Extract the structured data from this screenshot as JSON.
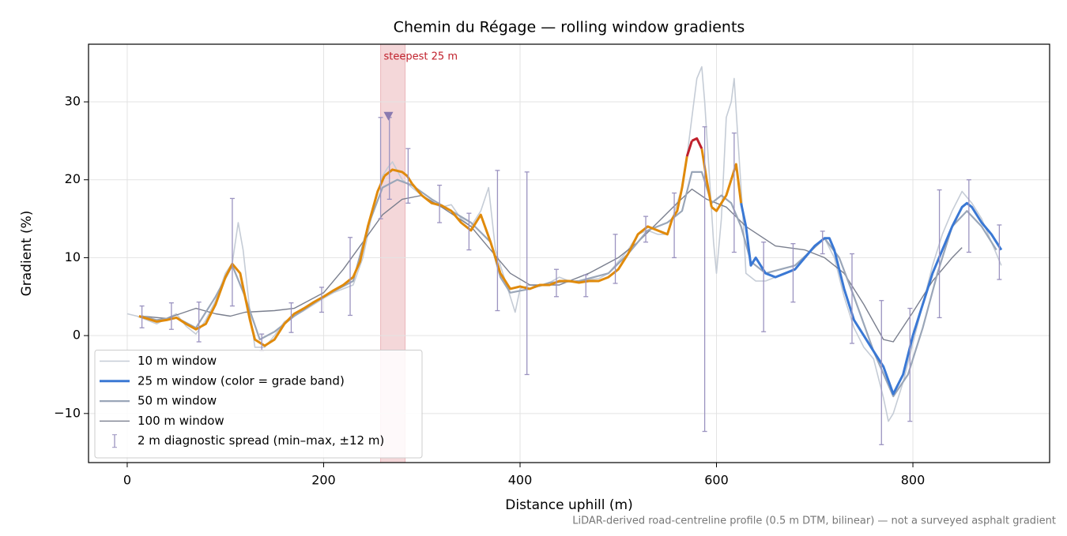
{
  "chart_data": {
    "type": "line",
    "title": "Chemin du Régage — rolling window gradients",
    "xlabel": "Distance uphill (m)",
    "ylabel": "Gradient (%)",
    "footnote": "LiDAR-derived road-centreline profile (0.5 m DTM, bilinear) — not a surveyed asphalt gradient",
    "xlim": [
      -39.4,
      939.2
    ],
    "ylim": [
      -16.3,
      37.4
    ],
    "xticks": [
      0,
      200,
      400,
      600,
      800
    ],
    "yticks": [
      {
        "value": -10,
        "label": "−10"
      },
      0,
      10,
      20,
      30
    ],
    "grid": true,
    "legend": "lower left",
    "highlight": {
      "xlim": [
        258,
        283
      ],
      "label": "steepest 25 m",
      "color": "#c0202b"
    },
    "marker": {
      "x": 266,
      "y": 28.2,
      "color": "#8a7ab0"
    },
    "series": [
      {
        "name": "10 m window",
        "color": "#c5ccd6",
        "x": [
          0,
          10,
          20,
          30,
          40,
          50,
          60,
          70,
          80,
          90,
          100,
          107,
          113,
          118,
          125,
          130,
          140,
          150,
          160,
          170,
          180,
          190,
          200,
          210,
          220,
          230,
          240,
          250,
          260,
          265,
          270,
          280,
          290,
          300,
          310,
          320,
          330,
          340,
          350,
          360,
          368,
          375,
          380,
          390,
          395,
          400,
          410,
          420,
          430,
          440,
          450,
          460,
          470,
          480,
          490,
          500,
          510,
          520,
          530,
          540,
          550,
          560,
          565,
          570,
          575,
          580,
          585,
          588,
          592,
          597,
          600,
          605,
          610,
          615,
          618,
          622,
          627,
          630,
          640,
          650,
          660,
          670,
          680,
          690,
          700,
          710,
          720,
          730,
          740,
          750,
          760,
          770,
          775,
          780,
          790,
          800,
          810,
          820,
          830,
          840,
          850,
          860,
          870,
          880,
          890
        ],
        "values": [
          2.8,
          2.5,
          2.0,
          1.5,
          2.2,
          2.8,
          1.2,
          0.2,
          2,
          4.5,
          8,
          9.3,
          14.5,
          11,
          3,
          -1.5,
          -1.5,
          0,
          1.8,
          2.5,
          3.2,
          4,
          4.8,
          5.5,
          6,
          6.5,
          10,
          16,
          20.5,
          21.5,
          22.3,
          20,
          19,
          18,
          17,
          16.5,
          16.8,
          15,
          14,
          16,
          19,
          11,
          9,
          5,
          3,
          6,
          6.5,
          6.3,
          6.8,
          7.5,
          7,
          6.8,
          7.2,
          7.3,
          8,
          9.5,
          11,
          13,
          13.5,
          13,
          13,
          17,
          19,
          23,
          28,
          33,
          34.5,
          30,
          22,
          12,
          8,
          15,
          28,
          30,
          33,
          25,
          15,
          8,
          7,
          7,
          7.5,
          8,
          8.5,
          10,
          11.5,
          12.5,
          10,
          5,
          1,
          -1.5,
          -3,
          -8,
          -11,
          -10,
          -6,
          -1,
          4,
          9,
          13,
          16,
          18.5,
          17,
          15,
          12,
          9
        ]
      },
      {
        "name": "25 m window (color = grade band)",
        "color": "#3a78d4",
        "color_bands": {
          "thresholds": [
            20,
            25
          ],
          "colors": [
            "#3a78d4",
            "#e08a0b",
            "#c0202b"
          ]
        },
        "x": [
          12,
          20,
          30,
          40,
          50,
          60,
          70,
          80,
          90,
          100,
          107,
          115,
          125,
          130,
          140,
          150,
          160,
          170,
          180,
          190,
          200,
          210,
          220,
          230,
          237,
          245,
          255,
          262,
          270,
          280,
          285,
          290,
          300,
          310,
          320,
          330,
          340,
          350,
          360,
          370,
          380,
          390,
          400,
          410,
          420,
          430,
          440,
          450,
          460,
          470,
          480,
          490,
          500,
          510,
          520,
          530,
          540,
          550,
          555,
          560,
          565,
          570,
          575,
          580,
          585,
          590,
          595,
          600,
          605,
          610,
          615,
          620,
          625,
          630,
          635,
          640,
          650,
          660,
          670,
          680,
          690,
          700,
          710,
          715,
          720,
          730,
          740,
          750,
          760,
          770,
          780,
          790,
          800,
          810,
          820,
          830,
          840,
          850,
          855,
          860,
          870,
          880,
          890
        ],
        "values": [
          2.5,
          2.2,
          1.8,
          2.0,
          2.3,
          1.5,
          0.8,
          1.5,
          4,
          7.5,
          9.2,
          8,
          2,
          -0.5,
          -1.3,
          -0.5,
          1.5,
          2.8,
          3.5,
          4.3,
          5,
          5.8,
          6.5,
          7.5,
          9.5,
          14,
          18.5,
          20.5,
          21.3,
          21,
          20.5,
          19.5,
          18,
          17,
          16.7,
          16,
          14.5,
          13.5,
          15.5,
          12,
          8,
          6,
          6.3,
          6,
          6.5,
          6.5,
          7,
          7,
          6.8,
          7,
          7,
          7.5,
          8.5,
          10.5,
          13,
          14,
          13.5,
          13,
          15,
          16,
          19,
          23,
          25,
          25.3,
          24,
          20,
          16.5,
          16,
          17,
          18,
          20,
          22,
          17,
          14,
          9,
          10,
          8,
          7.5,
          8,
          8.5,
          10,
          11.5,
          12.5,
          12.5,
          11,
          6,
          2,
          0,
          -2,
          -4,
          -7.5,
          -5,
          0,
          4,
          8,
          11,
          14,
          16.5,
          17,
          16.5,
          14.5,
          13,
          11
        ]
      },
      {
        "name": "50 m window",
        "color": "#9aa6b8",
        "x": [
          15,
          30,
          50,
          70,
          90,
          107,
          120,
          135,
          150,
          170,
          200,
          230,
          245,
          260,
          275,
          290,
          310,
          330,
          350,
          370,
          380,
          390,
          410,
          430,
          460,
          490,
          510,
          530,
          550,
          565,
          575,
          585,
          595,
          605,
          615,
          625,
          635,
          650,
          680,
          710,
          725,
          740,
          760,
          780,
          795,
          810,
          825,
          840,
          855,
          870,
          885
        ],
        "values": [
          2.5,
          2.0,
          2.3,
          1.0,
          5,
          9.0,
          5,
          -0.5,
          0.5,
          2.5,
          5,
          7,
          14,
          19,
          20,
          19.3,
          17.5,
          16,
          14.5,
          12,
          7.5,
          5.5,
          6,
          6.8,
          7,
          8,
          10.5,
          13.5,
          14.5,
          16,
          21,
          21,
          17,
          18,
          17,
          14,
          9.5,
          8,
          9,
          12.5,
          10,
          5,
          -2,
          -7.8,
          -5,
          1,
          8,
          14,
          16,
          14,
          11
        ]
      },
      {
        "name": "100 m window",
        "color": "#7a7f8e",
        "x": [
          15,
          40,
          70,
          90,
          105,
          120,
          150,
          170,
          200,
          220,
          240,
          260,
          280,
          300,
          320,
          350,
          370,
          390,
          410,
          440,
          470,
          500,
          520,
          540,
          560,
          575,
          590,
          610,
          630,
          660,
          690,
          710,
          730,
          750,
          770,
          780,
          800,
          820,
          840,
          850
        ],
        "values": [
          2.5,
          2.2,
          3.5,
          2.8,
          2.5,
          3,
          3.2,
          3.5,
          5.5,
          8.5,
          12,
          15.5,
          17.5,
          18,
          16.5,
          14,
          11,
          8,
          6.5,
          6.5,
          8,
          10,
          12,
          14.5,
          17,
          18.8,
          17.5,
          16.5,
          14,
          11.5,
          11,
          10,
          8,
          4,
          -0.5,
          -0.8,
          3,
          7,
          10,
          11.3
        ]
      },
      {
        "name": "2 m diagnostic spread (min–max, ±12 m)",
        "color": "#9b93c0",
        "x": [
          15,
          45,
          73,
          107,
          137,
          167,
          198,
          227,
          258,
          267,
          286,
          318,
          348,
          377,
          407,
          437,
          467,
          497,
          528,
          557,
          588,
          618,
          648,
          678,
          708,
          738,
          768,
          797,
          827,
          857,
          888
        ],
        "low": [
          1,
          0.8,
          -0.8,
          3.8,
          -2,
          0.4,
          3,
          2.6,
          15,
          17.5,
          17,
          14.5,
          11,
          3.2,
          -5,
          5,
          5,
          6.7,
          12,
          10,
          -12.3,
          10.7,
          0.5,
          4.3,
          10.5,
          -1,
          -14,
          -11,
          2.3,
          10.7,
          7.2
        ],
        "high": [
          3.8,
          4.2,
          4.3,
          17.6,
          0.2,
          4.2,
          6.2,
          12.6,
          28,
          28,
          24,
          19.3,
          15.7,
          21.2,
          21,
          8.5,
          7.8,
          13,
          15.3,
          18.3,
          26.8,
          26,
          12,
          11.8,
          13.4,
          10.5,
          4.5,
          3.5,
          18.7,
          20,
          14.2
        ]
      }
    ]
  }
}
